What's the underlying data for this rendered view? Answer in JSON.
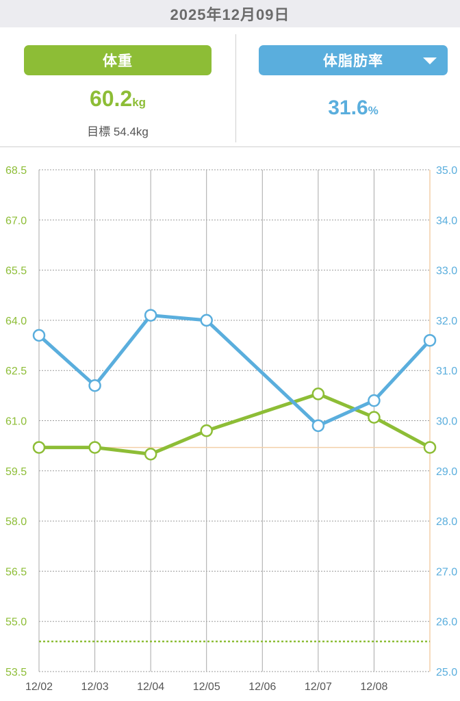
{
  "header": {
    "date": "2025年12月09日"
  },
  "weight_tab": {
    "label": "体重",
    "value": "60.2",
    "unit": "kg",
    "goal_label": "目標",
    "goal_value": "54.4kg"
  },
  "fat_tab": {
    "label": "体脂肪率",
    "value": "31.6",
    "unit": "%",
    "icon": "caret-down-icon"
  },
  "colors": {
    "weight": "#8dbd36",
    "fat": "#5aaedd",
    "reference": "#f3cfa8"
  },
  "chart_data": {
    "type": "line",
    "x": [
      "12/02",
      "12/03",
      "12/04",
      "12/05",
      "12/06",
      "12/07",
      "12/08",
      "12/09"
    ],
    "x_tick_labels": [
      "12/02",
      "12/03",
      "12/04",
      "12/05",
      "12/06",
      "12/07",
      "12/08"
    ],
    "left_axis": {
      "ticks": [
        "68.5",
        "67.0",
        "65.5",
        "64.0",
        "62.5",
        "61.0",
        "59.5",
        "58.0",
        "56.5",
        "55.0",
        "53.5"
      ],
      "range": [
        53.5,
        68.5
      ]
    },
    "right_axis": {
      "ticks": [
        "35.0",
        "34.0",
        "33.0",
        "32.0",
        "31.0",
        "30.0",
        "29.0",
        "28.0",
        "27.0",
        "26.0",
        "25.0"
      ],
      "range": [
        25.0,
        35.0
      ]
    },
    "series": [
      {
        "axis": "left",
        "color": "#8dbd36",
        "points": [
          {
            "x": "12/02",
            "y": 60.2
          },
          {
            "x": "12/03",
            "y": 60.2
          },
          {
            "x": "12/04",
            "y": 60.0
          },
          {
            "x": "12/05",
            "y": 60.7
          },
          {
            "x": "12/07",
            "y": 61.8
          },
          {
            "x": "12/08",
            "y": 61.1
          },
          {
            "x": "12/09",
            "y": 60.2
          }
        ]
      },
      {
        "axis": "right",
        "color": "#5aaedd",
        "points": [
          {
            "x": "12/02",
            "y": 31.7
          },
          {
            "x": "12/03",
            "y": 30.7
          },
          {
            "x": "12/04",
            "y": 32.1
          },
          {
            "x": "12/05",
            "y": 32.0
          },
          {
            "x": "12/07",
            "y": 29.9
          },
          {
            "x": "12/08",
            "y": 30.4
          },
          {
            "x": "12/09",
            "y": 31.6
          }
        ]
      }
    ],
    "reference_lines": [
      {
        "axis": "left",
        "y": 60.2,
        "style": "solid",
        "color": "#f3cfa8"
      },
      {
        "axis": "left",
        "y": 54.4,
        "style": "dotted",
        "color": "#8dbd36"
      }
    ],
    "grid": true
  }
}
